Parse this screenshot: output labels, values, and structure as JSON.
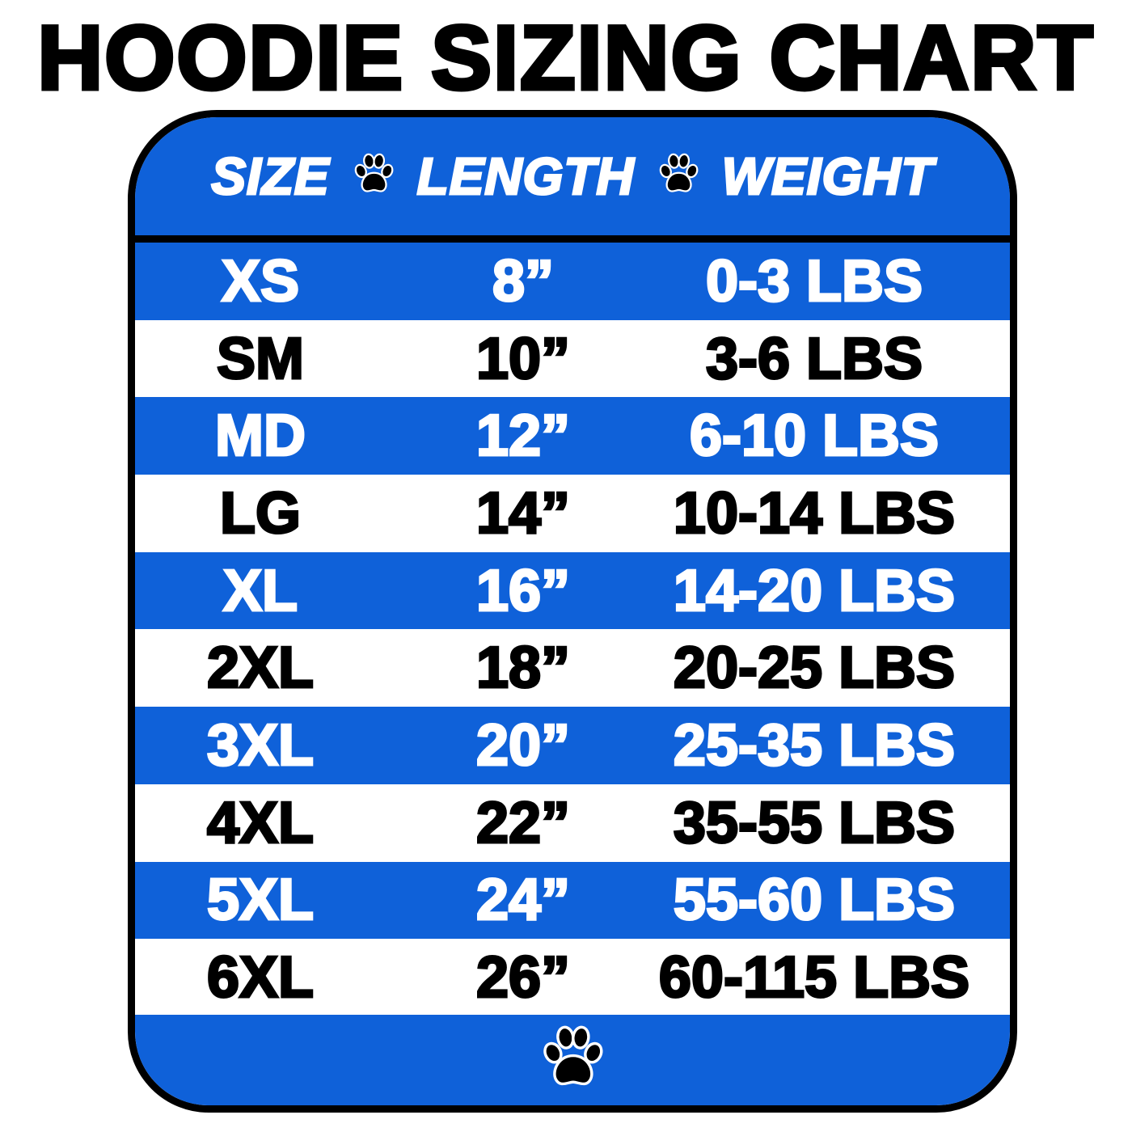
{
  "title": "HOODIE SIZING CHART",
  "colors": {
    "band_blue": "#0f61d9",
    "white": "#ffffff",
    "text_dark": "#000000"
  },
  "icons": {
    "separator": "paw-print-icon",
    "footer": "paw-print-icon"
  },
  "chart_data": {
    "type": "table",
    "title": "HOODIE SIZING CHART",
    "columns": [
      "SIZE",
      "LENGTH",
      "WEIGHT"
    ],
    "rows": [
      [
        "XS",
        "8”",
        "0-3 LBS"
      ],
      [
        "SM",
        "10”",
        "3-6 LBS"
      ],
      [
        "MD",
        "12”",
        "6-10 LBS"
      ],
      [
        "LG",
        "14”",
        "10-14 LBS"
      ],
      [
        "XL",
        "16”",
        "14-20 LBS"
      ],
      [
        "2XL",
        "18”",
        "20-25 LBS"
      ],
      [
        "3XL",
        "20”",
        "25-35 LBS"
      ],
      [
        "4XL",
        "22”",
        "35-55 LBS"
      ],
      [
        "5XL",
        "24”",
        "55-60 LBS"
      ],
      [
        "6XL",
        "26”",
        "60-115 LBS"
      ]
    ]
  }
}
